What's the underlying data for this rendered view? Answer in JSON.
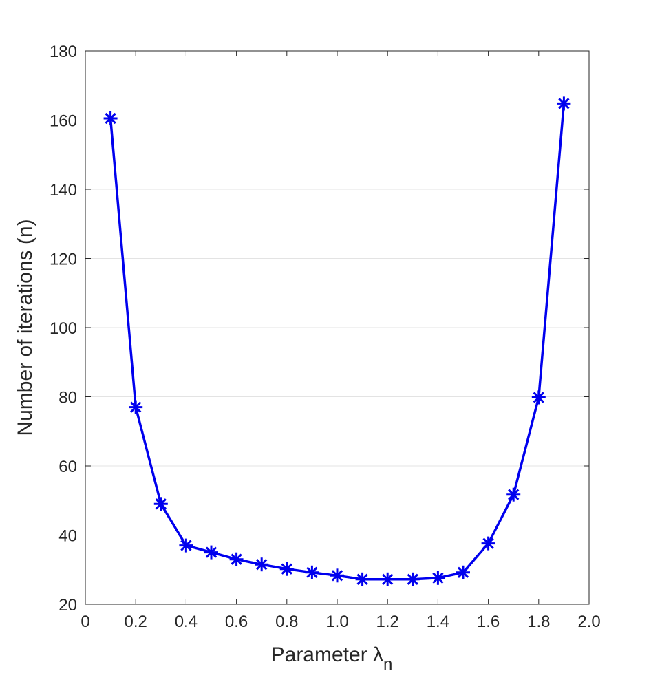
{
  "chart_data": {
    "type": "line",
    "title": "",
    "xlabel": "Parameter λ",
    "xlabel_subscript": "n",
    "ylabel": "Number of iterations (n)",
    "xlim": [
      0,
      2.0
    ],
    "ylim": [
      20,
      180
    ],
    "x_ticks": [
      "0",
      "0.2",
      "0.4",
      "0.6",
      "0.8",
      "1.0",
      "1.2",
      "1.4",
      "1.6",
      "1.8",
      "2.0"
    ],
    "y_ticks": [
      "20",
      "40",
      "60",
      "80",
      "100",
      "120",
      "140",
      "160",
      "180"
    ],
    "grid": "horizontal",
    "legend": "none",
    "series": [
      {
        "x": [
          0.1,
          0.2,
          0.3,
          0.4,
          0.5,
          0.6,
          0.7,
          0.8,
          0.9,
          1.0,
          1.1,
          1.2,
          1.3,
          1.4,
          1.5,
          1.6,
          1.7,
          1.8,
          1.9
        ],
        "values": [
          160.5,
          77,
          49,
          37,
          35,
          33,
          31.5,
          30.2,
          29.2,
          28.3,
          27.2,
          27.2,
          27.2,
          27.6,
          29.2,
          37.6,
          51.7,
          79.8,
          164.8
        ],
        "color": "#0000ee",
        "marker": "asterisk"
      }
    ]
  }
}
